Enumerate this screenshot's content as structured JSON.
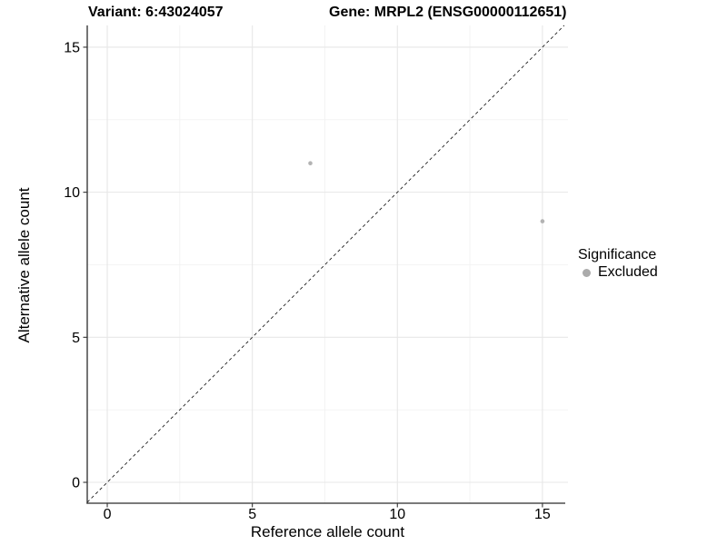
{
  "figure": {
    "title_left": "Variant: 6:43024057",
    "title_right": "Gene: MRPL2 (ENSG00000112651)"
  },
  "chart_data": {
    "type": "scatter",
    "title": "Variant: 6:43024057   Gene: MRPL2 (ENSG00000112651)",
    "xlabel": "Reference allele count",
    "ylabel": "Alternative allele count",
    "xlim": [
      -0.69,
      15.88
    ],
    "ylim": [
      -0.72,
      15.75
    ],
    "x_major_ticks": [
      0,
      5,
      10,
      15
    ],
    "y_major_ticks": [
      0,
      5,
      10,
      15
    ],
    "x_minor_ticks": [
      2.5,
      7.5,
      12.5
    ],
    "y_minor_ticks": [
      2.5,
      7.5,
      12.5
    ],
    "grid": true,
    "series": [
      {
        "name": "Excluded",
        "points": [
          {
            "x": 7,
            "y": 11
          },
          {
            "x": 15,
            "y": 9
          }
        ],
        "color": "#b3b3b3",
        "point_radius": 2.3
      }
    ],
    "identity_line": {
      "slope": 1,
      "intercept": 0,
      "style": "dashed",
      "color": "#1f1f1f"
    },
    "legend": {
      "title": "Significance",
      "position": "right",
      "items": [
        {
          "label": "Excluded",
          "color": "#ababab"
        }
      ]
    }
  },
  "colors": {
    "grid_major": "#e7e7e7",
    "grid_minor": "#f2f2f2",
    "axis_line": "#2b2b2b",
    "tick_mark": "#333333",
    "text": "#000000"
  }
}
